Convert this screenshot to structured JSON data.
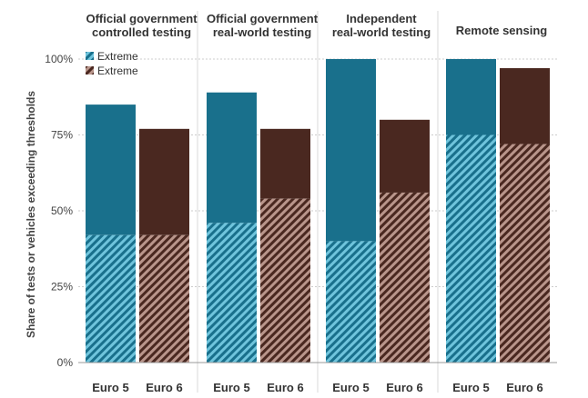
{
  "chart_data": {
    "type": "bar",
    "stacked": true,
    "ylabel": "Share of tests or vehicles exceeding thresholds",
    "ylim": [
      0,
      100
    ],
    "yticks": [
      "0%",
      "25%",
      "50%",
      "75%",
      "100%"
    ],
    "ytick_values": [
      0,
      25,
      50,
      75,
      100
    ],
    "legend": {
      "position": "top-left",
      "entries": [
        "Extreme",
        "Extreme"
      ]
    },
    "colors": {
      "euro5": "#19708c",
      "euro6": "#4a2820",
      "euro5_hatch": "#6fc4dc",
      "euro6_hatch": "#b9958b",
      "grid": "#cccccc",
      "separator": "#d8d8d8"
    },
    "panels": [
      {
        "title_lines": [
          "Official government",
          "controlled testing"
        ],
        "bars": [
          {
            "category": "Euro 5",
            "series": "euro5",
            "total": 85,
            "extreme": 42
          },
          {
            "category": "Euro 6",
            "series": "euro6",
            "total": 77,
            "extreme": 42
          }
        ]
      },
      {
        "title_lines": [
          "Official government",
          "real-world testing"
        ],
        "bars": [
          {
            "category": "Euro 5",
            "series": "euro5",
            "total": 89,
            "extreme": 46
          },
          {
            "category": "Euro 6",
            "series": "euro6",
            "total": 77,
            "extreme": 54
          }
        ]
      },
      {
        "title_lines": [
          "Independent",
          "real-world testing"
        ],
        "bars": [
          {
            "category": "Euro 5",
            "series": "euro5",
            "total": 100,
            "extreme": 40
          },
          {
            "category": "Euro 6",
            "series": "euro6",
            "total": 80,
            "extreme": 56
          }
        ]
      },
      {
        "title_lines": [
          "Remote sensing"
        ],
        "bars": [
          {
            "category": "Euro 5",
            "series": "euro5",
            "total": 100,
            "extreme": 75
          },
          {
            "category": "Euro 6",
            "series": "euro6",
            "total": 97,
            "extreme": 72
          }
        ]
      }
    ]
  }
}
